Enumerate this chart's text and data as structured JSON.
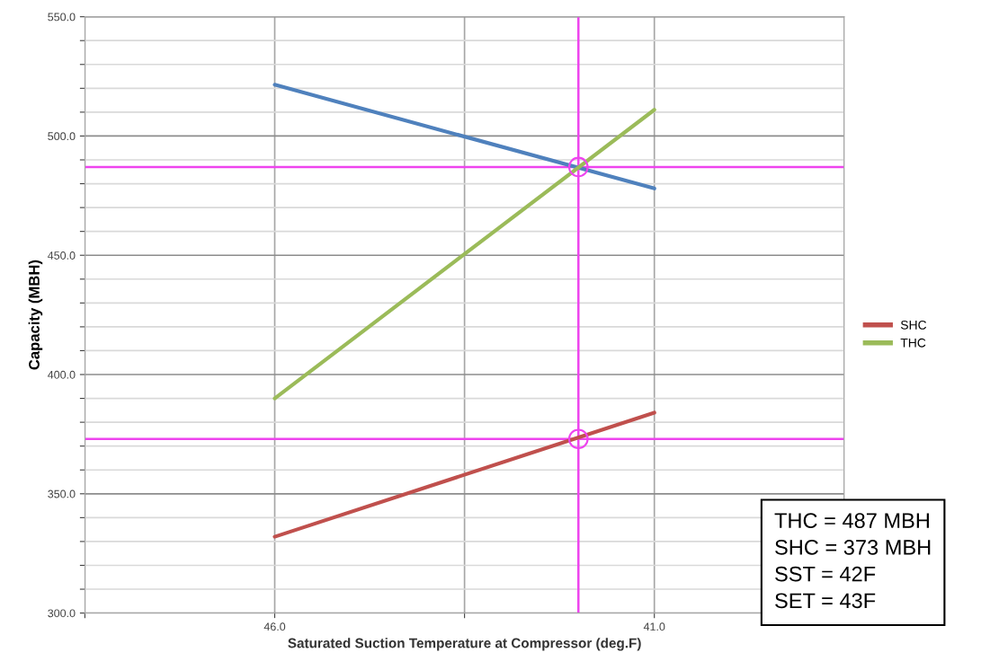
{
  "chart_data": {
    "type": "line",
    "xlabel": "Saturated Suction Temperature at Compressor (deg.F)",
    "ylabel": "Capacity (MBH)",
    "x": [
      46,
      41
    ],
    "series": [
      {
        "color": "#4f81bd",
        "values": [
          521.5,
          478
        ]
      },
      {
        "name": "SHC",
        "color": "#c0504d",
        "values": [
          332,
          384
        ]
      },
      {
        "name": "THC",
        "color": "#9bbb59",
        "values": [
          390,
          511
        ]
      },
      {
        "type": "scatter",
        "color": "#ee44ee",
        "x": [
          42,
          42
        ],
        "values": [
          487,
          373
        ]
      }
    ],
    "xlim": [
      48.5,
      38.5
    ],
    "xticks": [
      {
        "value": 48.5,
        "label": null
      },
      {
        "value": 46,
        "label": "46.0"
      },
      {
        "value": 43.5,
        "label": null
      },
      {
        "value": 41,
        "label": "41.0"
      },
      {
        "value": 38.5,
        "label": null
      }
    ],
    "ylim": [
      300,
      550
    ],
    "yticks": [
      {
        "value": 300,
        "label": "300.0"
      },
      {
        "value": 310,
        "label": null
      },
      {
        "value": 320,
        "label": null
      },
      {
        "value": 330,
        "label": null
      },
      {
        "value": 340,
        "label": null
      },
      {
        "value": 350,
        "label": "350.0"
      },
      {
        "value": 360,
        "label": null
      },
      {
        "value": 370,
        "label": null
      },
      {
        "value": 380,
        "label": null
      },
      {
        "value": 390,
        "label": null
      },
      {
        "value": 400,
        "label": "400.0"
      },
      {
        "value": 410,
        "label": null
      },
      {
        "value": 420,
        "label": null
      },
      {
        "value": 430,
        "label": null
      },
      {
        "value": 440,
        "label": null
      },
      {
        "value": 450,
        "label": "450.0"
      },
      {
        "value": 460,
        "label": null
      },
      {
        "value": 470,
        "label": null
      },
      {
        "value": 480,
        "label": null
      },
      {
        "value": 490,
        "label": null
      },
      {
        "value": 500,
        "label": "500.0"
      },
      {
        "value": 510,
        "label": null
      },
      {
        "value": 520,
        "label": null
      },
      {
        "value": 530,
        "label": null
      },
      {
        "value": 540,
        "label": null
      },
      {
        "value": 550,
        "label": "550.0"
      }
    ],
    "grid": true,
    "legend": "right",
    "ref_lines": [
      {
        "axis": "x",
        "value": 42,
        "color": "#ee44ee"
      },
      {
        "axis": "y",
        "value": 487,
        "color": "#ee44ee"
      },
      {
        "axis": "y",
        "value": 373,
        "color": "#ee44ee"
      }
    ],
    "annotations": [
      "THC = 487 MBH",
      "SHC = 373 MBH",
      "SST = 42F",
      "SET = 43F"
    ]
  }
}
